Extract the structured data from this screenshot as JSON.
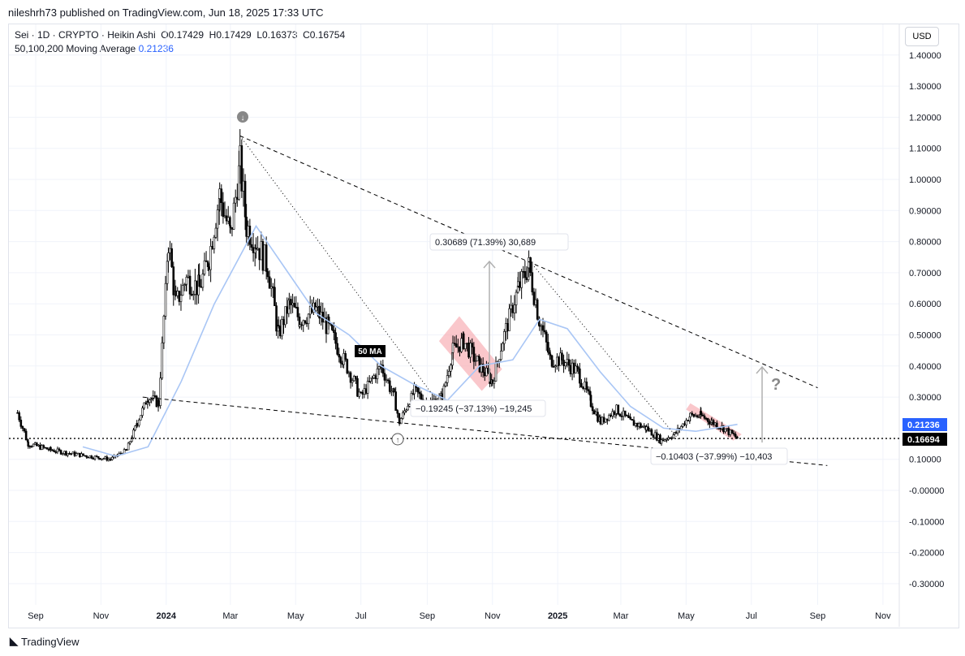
{
  "header": {
    "published": "nileshrh73 published on TradingView.com, Jun 18, 2025 17:33 UTC",
    "symbol_line": "Sei · 1D · CRYPTO · Heikin Ashi  O0.17429  H0.17429  L0.16373  C0.16754",
    "ma_label": "50,100,200 Moving Average",
    "ma_value": "0.21236",
    "currency": "USD"
  },
  "footer": {
    "brand": "TradingView"
  },
  "colors": {
    "candle": "#000000",
    "ma": "#a9c6f5",
    "ma_badge": "#2962ff",
    "last_badge": "#000000",
    "zone": "#f7a1a8"
  },
  "chart_data": {
    "type": "candlestick",
    "ylim": [
      -0.35,
      1.45
    ],
    "y_ticks": [
      "1.40000",
      "1.30000",
      "1.20000",
      "1.10000",
      "1.00000",
      "0.90000",
      "0.80000",
      "0.70000",
      "0.60000",
      "0.50000",
      "0.40000",
      "0.30000",
      "0.10000",
      "-0.00000",
      "-0.10000",
      "-0.20000",
      "-0.30000"
    ],
    "x_ticks": [
      [
        "2023-09-01",
        "Sep"
      ],
      [
        "2023-11-01",
        "Nov"
      ],
      [
        "2024-01-01",
        "2024"
      ],
      [
        "2024-03-01",
        "Mar"
      ],
      [
        "2024-05-01",
        "May"
      ],
      [
        "2024-07-01",
        "Jul"
      ],
      [
        "2024-09-01",
        "Sep"
      ],
      [
        "2024-11-01",
        "Nov"
      ],
      [
        "2025-01-01",
        "2025"
      ],
      [
        "2025-03-01",
        "Mar"
      ],
      [
        "2025-05-01",
        "May"
      ],
      [
        "2025-07-01",
        "Jul"
      ],
      [
        "2025-09-01",
        "Sep"
      ],
      [
        "2025-11-01",
        "Nov"
      ]
    ],
    "price": [
      [
        "2023-08-15",
        0.25
      ],
      [
        "2023-08-25",
        0.15
      ],
      [
        "2023-09-15",
        0.13
      ],
      [
        "2023-10-01",
        0.12
      ],
      [
        "2023-10-20",
        0.11
      ],
      [
        "2023-11-10",
        0.1
      ],
      [
        "2023-11-25",
        0.13
      ],
      [
        "2023-12-05",
        0.22
      ],
      [
        "2023-12-15",
        0.3
      ],
      [
        "2023-12-25",
        0.28
      ],
      [
        "2024-01-03",
        0.8
      ],
      [
        "2024-01-10",
        0.6
      ],
      [
        "2024-01-20",
        0.68
      ],
      [
        "2024-02-01",
        0.65
      ],
      [
        "2024-02-10",
        0.75
      ],
      [
        "2024-02-20",
        0.95
      ],
      [
        "2024-03-01",
        0.82
      ],
      [
        "2024-03-10",
        1.05
      ],
      [
        "2024-03-16",
        0.85
      ],
      [
        "2024-03-25",
        0.8
      ],
      [
        "2024-04-05",
        0.72
      ],
      [
        "2024-04-15",
        0.5
      ],
      [
        "2024-04-25",
        0.6
      ],
      [
        "2024-05-05",
        0.55
      ],
      [
        "2024-05-20",
        0.58
      ],
      [
        "2024-06-01",
        0.52
      ],
      [
        "2024-06-15",
        0.42
      ],
      [
        "2024-07-01",
        0.3
      ],
      [
        "2024-07-10",
        0.35
      ],
      [
        "2024-07-20",
        0.4
      ],
      [
        "2024-08-01",
        0.3
      ],
      [
        "2024-08-06",
        0.22
      ],
      [
        "2024-08-20",
        0.32
      ],
      [
        "2024-09-01",
        0.28
      ],
      [
        "2024-09-15",
        0.3
      ],
      [
        "2024-09-25",
        0.45
      ],
      [
        "2024-10-05",
        0.48
      ],
      [
        "2024-10-20",
        0.4
      ],
      [
        "2024-11-01",
        0.35
      ],
      [
        "2024-11-12",
        0.5
      ],
      [
        "2024-11-25",
        0.65
      ],
      [
        "2024-12-05",
        0.72
      ],
      [
        "2024-12-15",
        0.55
      ],
      [
        "2024-12-25",
        0.42
      ],
      [
        "2025-01-05",
        0.42
      ],
      [
        "2025-01-20",
        0.38
      ],
      [
        "2025-02-01",
        0.28
      ],
      [
        "2025-02-10",
        0.22
      ],
      [
        "2025-02-25",
        0.26
      ],
      [
        "2025-03-10",
        0.22
      ],
      [
        "2025-03-25",
        0.2
      ],
      [
        "2025-04-08",
        0.16
      ],
      [
        "2025-04-20",
        0.18
      ],
      [
        "2025-05-05",
        0.24
      ],
      [
        "2025-05-15",
        0.24
      ],
      [
        "2025-05-25",
        0.22
      ],
      [
        "2025-06-05",
        0.2
      ],
      [
        "2025-06-18",
        0.1675
      ]
    ],
    "ma50": [
      [
        "2023-10-15",
        0.14
      ],
      [
        "2023-11-15",
        0.11
      ],
      [
        "2023-12-15",
        0.14
      ],
      [
        "2024-01-15",
        0.35
      ],
      [
        "2024-02-15",
        0.6
      ],
      [
        "2024-03-25",
        0.85
      ],
      [
        "2024-04-20",
        0.72
      ],
      [
        "2024-05-20",
        0.57
      ],
      [
        "2024-06-20",
        0.5
      ],
      [
        "2024-07-20",
        0.4
      ],
      [
        "2024-08-20",
        0.34
      ],
      [
        "2024-09-20",
        0.29
      ],
      [
        "2024-10-20",
        0.4
      ],
      [
        "2024-11-20",
        0.42
      ],
      [
        "2024-12-15",
        0.55
      ],
      [
        "2025-01-10",
        0.52
      ],
      [
        "2025-02-10",
        0.38
      ],
      [
        "2025-03-10",
        0.27
      ],
      [
        "2025-04-10",
        0.2
      ],
      [
        "2025-05-10",
        0.19
      ],
      [
        "2025-06-18",
        0.21236
      ]
    ],
    "annotations": {
      "ma_tag": "50 MA",
      "measure_up": "0.30689 (71.39%) 30,689",
      "measure_down1": "−0.19245 (−37.13%) −19,245",
      "measure_down2": "−0.10403 (−37.99%) −10,403",
      "question": "?",
      "last_price": "0.16694",
      "upper_trend": [
        [
          "2024-03-10",
          1.14
        ],
        [
          "2025-09-01",
          0.33
        ]
      ],
      "lower_trend": [
        [
          "2023-12-10",
          0.3
        ],
        [
          "2025-09-10",
          0.08
        ]
      ],
      "dotted1": [
        [
          "2024-03-10",
          1.14
        ],
        [
          "2024-09-12",
          0.28
        ]
      ],
      "dotted2": [
        [
          "2024-12-10",
          0.72
        ],
        [
          "2025-04-25",
          0.16
        ]
      ]
    }
  }
}
